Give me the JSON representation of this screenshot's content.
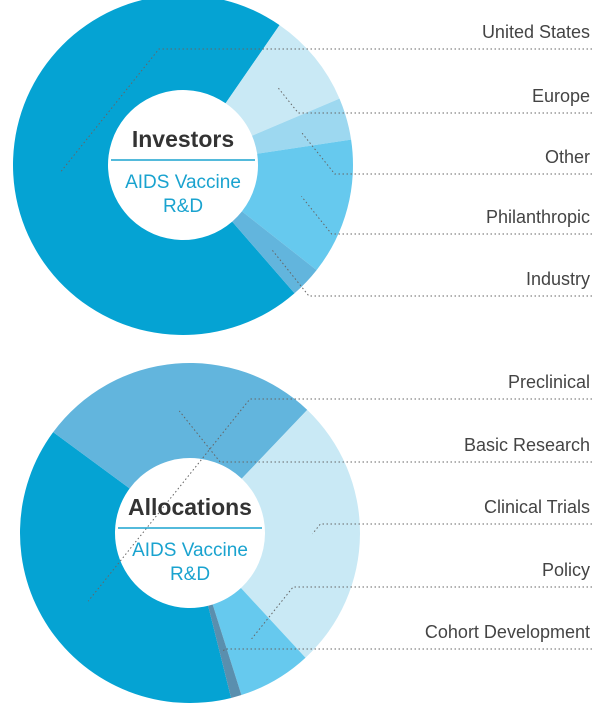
{
  "chart_data": [
    {
      "type": "donut",
      "center_title": "Investors",
      "center_lines": [
        "AIDS Vaccine",
        "R&D"
      ],
      "categories": [
        "United States",
        "Europe",
        "Other",
        "Philanthropic",
        "Industry"
      ],
      "values": [
        71,
        9,
        4,
        13,
        3
      ],
      "colors": [
        "#05a3d3",
        "#c9e9f5",
        "#9dd8f0",
        "#66c9ee",
        "#62b5dd"
      ]
    },
    {
      "type": "donut",
      "center_title": "Allocations",
      "center_lines": [
        "AIDS Vaccine",
        "R&D"
      ],
      "categories": [
        "Preclinical",
        "Basic Research",
        "Clinical Trials",
        "Policy",
        "Cohort Development"
      ],
      "values": [
        39,
        27,
        26,
        7,
        1
      ],
      "colors": [
        "#05a3d3",
        "#62b5dd",
        "#c9e9f5",
        "#66c9ee",
        "#5a8fae"
      ]
    }
  ]
}
